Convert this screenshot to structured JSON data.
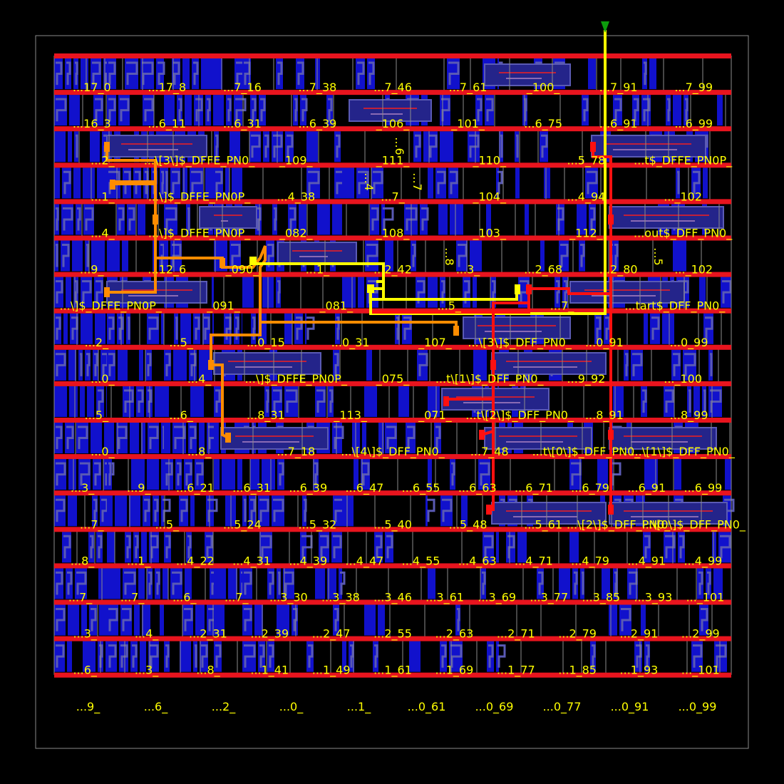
{
  "viewer": {
    "title": "",
    "colors": {
      "background": "#000000",
      "die_outline": "#8a8a8a",
      "power_rail": "#e8141e",
      "metal_fill": "#1111cc",
      "metal_pattern": "#5a5ab4",
      "cell_outline": "#8c8c8c",
      "label": "#ffff00",
      "net_orange": "#ff8c00",
      "net_yellow": "#ffff00",
      "net_red": "#ff1010",
      "pin_marker": "#0c9c0c"
    }
  },
  "rows": [
    [
      "...17_0",
      "...17_8",
      "...7_16",
      "...7_38",
      "...7_46",
      "...7_61",
      "_100_",
      "...7_91",
      "...7_99"
    ],
    [
      "...16_3",
      "...6_11",
      "...6_31",
      "...6_39",
      "_106_",
      "_101_",
      "...6_75",
      "...6_91",
      "...6_99"
    ],
    [
      "...2_",
      "...\\[3\\]$_DFFE_PN0_",
      "_109_",
      "_111_",
      "_110_",
      "...5_78",
      "...t$_DFFE_PN0P_"
    ],
    [
      "...1_",
      "...\\]$_DFFE_PN0P_",
      "...4_38",
      "...7_",
      "_104_",
      "...4_94",
      "..._102"
    ],
    [
      "...4_",
      "...\\]$_DFFE_PN0P_",
      "_082_",
      "_108_",
      "_103_",
      "_112_",
      "...out$_DFF_PN0_"
    ],
    [
      "...9_",
      "...12_6",
      "_090_",
      "...1_",
      "...2_42",
      "...3_",
      "...2_68",
      "...2_80",
      "..._102"
    ],
    [
      "...\\]$_DFFE_PN0P_",
      "_091_",
      "_081_",
      "...5_",
      "...7_",
      "...tart$_DFF_PN0_"
    ],
    [
      "...2_",
      "...5_",
      "...0_15",
      "...0_31",
      "_107_",
      "...\\[3\\]$_DFF_PN0_",
      "...0_91",
      "...0_99"
    ],
    [
      "...0_",
      "...4_",
      "...\\]$_DFFE_PN0P_",
      "_075_",
      "...t\\[1\\]$_DFF_PN0_",
      "...9_92",
      "..._100"
    ],
    [
      "...5_",
      "...6_",
      "...8_31",
      "_113_",
      "_071_",
      "...t\\[2\\]$_DFF_PN0_",
      "...8_91",
      "...8_99"
    ],
    [
      "...0_",
      "...8_",
      "...7_18",
      "...\\[4\\]$_DFF_PN0_",
      "...7_48",
      "...t\\[0\\]$_DFF_PN0_",
      "...\\[1\\]$_DFF_PN0_"
    ],
    [
      "...3_",
      "...9_",
      "...6_21",
      "...6_31",
      "...6_39",
      "...6_47",
      "...6_55",
      "...6_63",
      "...6_71",
      "...6_79",
      "...6_91",
      "...6_99"
    ],
    [
      "...7_",
      "...5_",
      "...5_24",
      "...5_32",
      "...5_40",
      "...5_48",
      "...5_61",
      "...\\[2\\]$_DFF_PN0_",
      "...\\[0\\]$_DFF_PN0_"
    ],
    [
      "...8_",
      "...1_",
      "...4_22",
      "...4_31",
      "...4_39",
      "...4_47",
      "...4_55",
      "...4_63",
      "...4_71",
      "...4_79",
      "...4_91",
      "...4_99"
    ],
    [
      "...7_",
      "...7_",
      "...6_",
      "...7_",
      "...3_30",
      "...3_38",
      "...3_46",
      "...3_61",
      "...3_69",
      "...3_77",
      "...3_85",
      "...3_93",
      "..._101"
    ],
    [
      "...3_",
      "...4_",
      "...2_31",
      "...2_39",
      "...2_47",
      "...2_55",
      "...2_63",
      "...2_71",
      "...2_79",
      "...2_91",
      "...2_99"
    ],
    [
      "...6_",
      "...3_",
      "...8_",
      "...1_41",
      "...1_49",
      "...1_61",
      "...1_69",
      "...1_77",
      "...1_85",
      "...1_93",
      "..._101"
    ],
    [
      "...9_",
      "...6_",
      "...2_",
      "...0_",
      "...1_",
      "...0_61",
      "...0_69",
      "...0_77",
      "...0_91",
      "...0_99"
    ]
  ],
  "vertical_labels": [
    "...6",
    "...4",
    "...7",
    "...8",
    "...5"
  ]
}
